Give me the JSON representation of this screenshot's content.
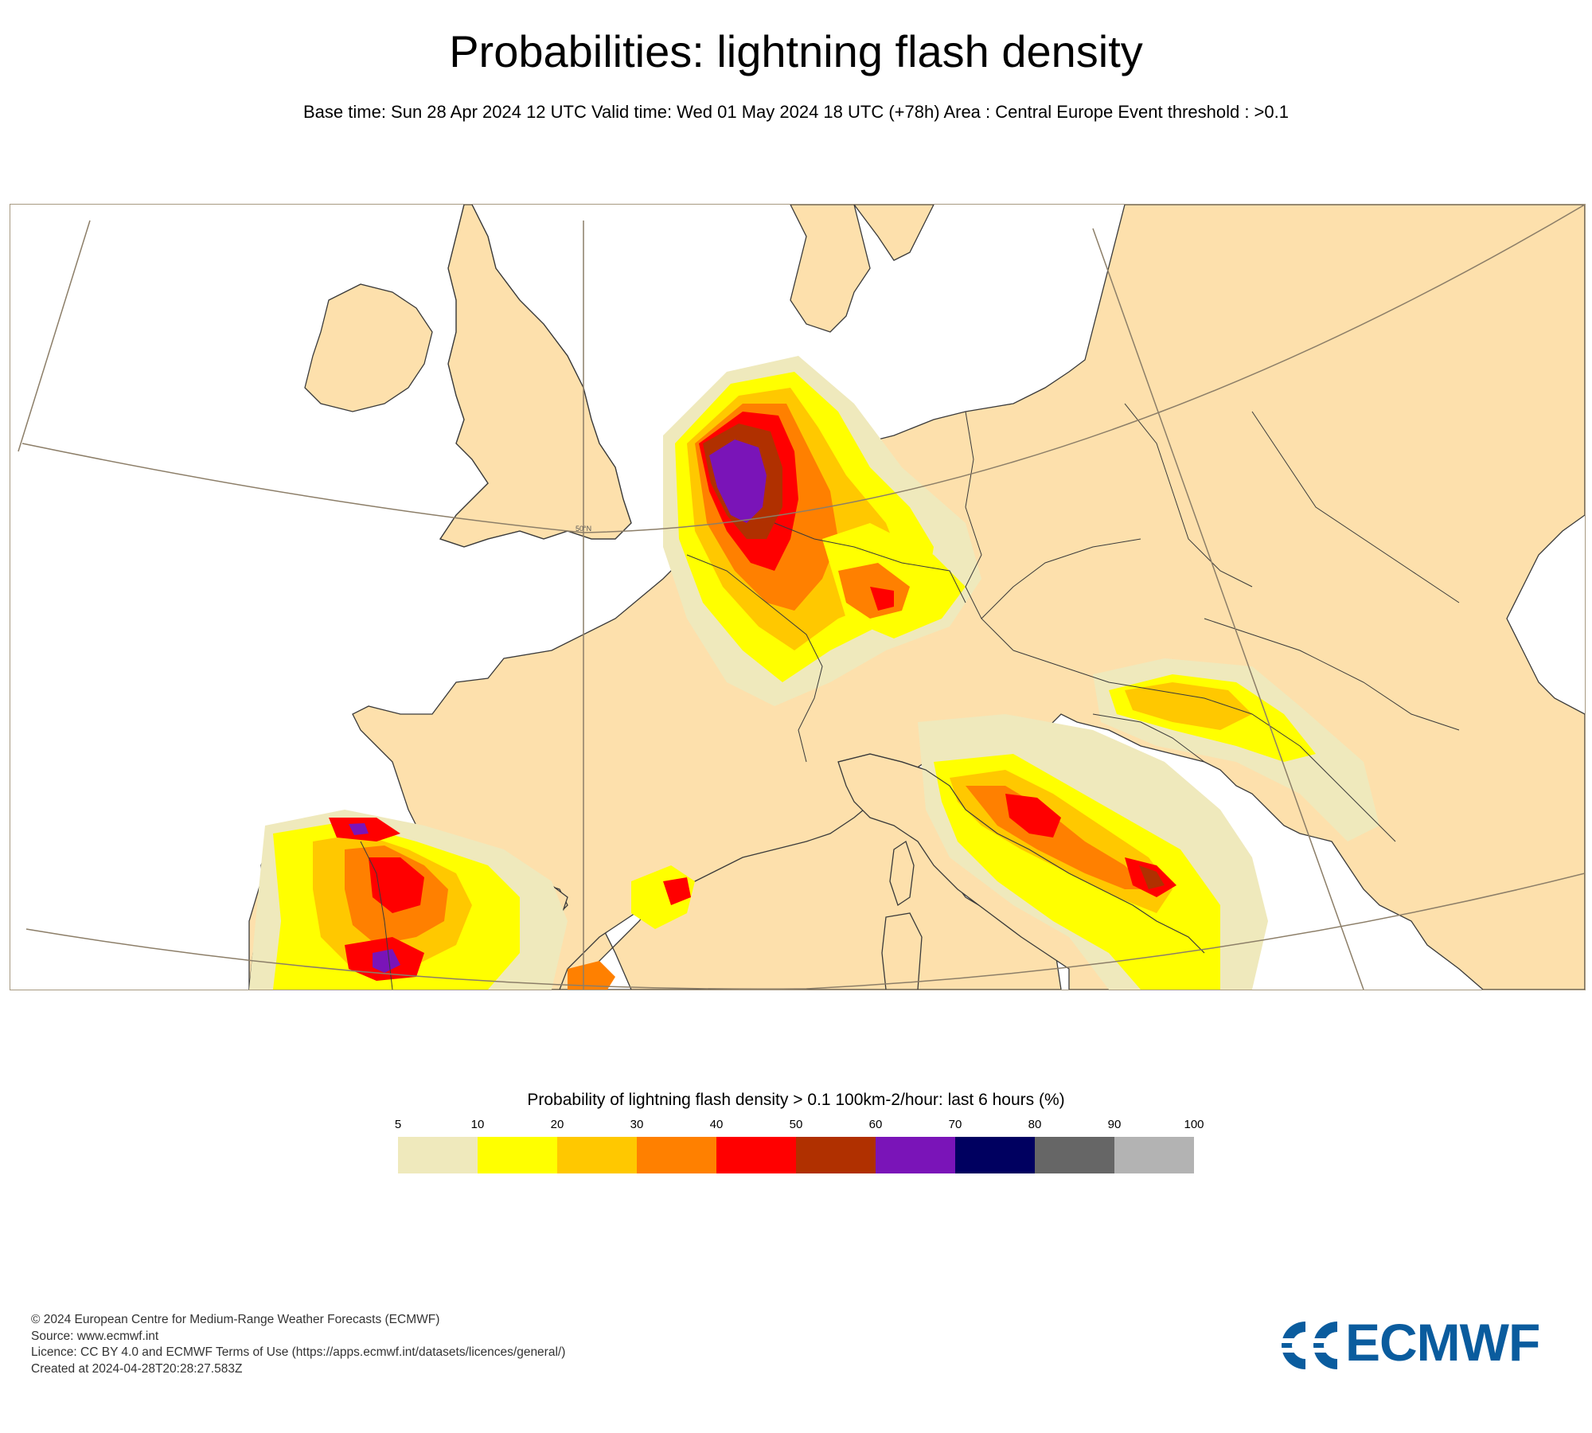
{
  "title": "Probabilities: lightning flash density",
  "subtitle": "Base time: Sun 28 Apr 2024 12 UTC Valid time: Wed 01 May 2024 18 UTC (+78h) Area : Central Europe Event threshold : >0.1",
  "map": {
    "region": "Central Europe",
    "lat_label": "50°N",
    "land_color": "#fde0ac",
    "sea_color": "#ffffff",
    "border_color": "#3a3a3a",
    "graticule_color": "#8c7e68"
  },
  "legend": {
    "title": "Probability of lightning flash density > 0.1 100km-2/hour: last 6 hours (%)",
    "ticks": [
      "5",
      "10",
      "20",
      "30",
      "40",
      "50",
      "60",
      "70",
      "80",
      "90",
      "100"
    ],
    "colors": [
      "#efe9bc",
      "#ffff00",
      "#ffc800",
      "#ff8000",
      "#ff0000",
      "#b03000",
      "#7a14b8",
      "#000060",
      "#666666",
      "#b3b3b3"
    ]
  },
  "credits": {
    "line1": "© 2024 European Centre for Medium-Range Weather Forecasts (ECMWF)",
    "line2": "Source: www.ecmwf.int",
    "line3": "Licence: CC BY 4.0 and ECMWF Terms of Use (https://apps.ecmwf.int/datasets/licences/general/)",
    "line4": "Created at 2024-04-28T20:28:27.583Z"
  },
  "logo": {
    "text": "ECMWF",
    "color": "#0a5c9e"
  }
}
